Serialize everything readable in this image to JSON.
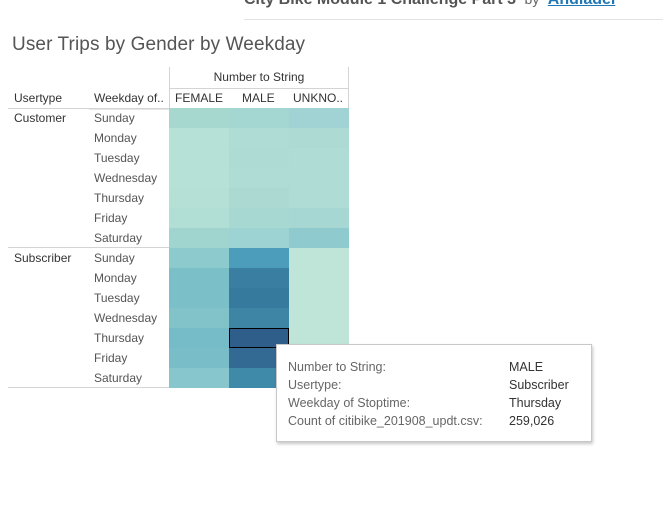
{
  "dashboard": {
    "title": "City Bike Module 1 Challenge Part 3",
    "by_label": "by",
    "author": "Ahdiadel"
  },
  "viz": {
    "title": "User Trips by Gender by Weekday",
    "column_group_header": "Number to String",
    "row_headers": [
      "Usertype",
      "Weekday of.."
    ],
    "columns": [
      "FEMALE",
      "MALE",
      "UNKNO.."
    ],
    "usertypes": [
      "Customer",
      "Subscriber"
    ],
    "weekdays": [
      "Sunday",
      "Monday",
      "Tuesday",
      "Wednesday",
      "Thursday",
      "Friday",
      "Saturday"
    ],
    "cell_colors": {
      "Customer": [
        [
          "#a6d8d0",
          "#a4d6d2",
          "#a1d3d4"
        ],
        [
          "#b6e1d6",
          "#afdcd4",
          "#addbd4"
        ],
        [
          "#b6e1d6",
          "#aedcd4",
          "#afdcd4"
        ],
        [
          "#b6e1d6",
          "#afdcd4",
          "#afdcd4"
        ],
        [
          "#b4e0d5",
          "#acdad3",
          "#afdcd4"
        ],
        [
          "#b1ded5",
          "#a8d8d2",
          "#a6d7d2"
        ],
        [
          "#a0d4cf",
          "#9dd3d2",
          "#8fcacf"
        ]
      ],
      "Subscriber": [
        [
          "#8dcace",
          "#4c9dbb",
          "#bfe5d8"
        ],
        [
          "#7bbfc8",
          "#3a7ea1",
          "#bfe5d8"
        ],
        [
          "#7bbfc8",
          "#367a9e",
          "#bfe5d8"
        ],
        [
          "#82c3ca",
          "#3d84a5",
          "#bfe5d8"
        ],
        [
          "#76bbc8",
          "#305e8b",
          "#bfe5d8"
        ],
        [
          "#79bdc8",
          "#336a94",
          "#bfe5d8"
        ],
        [
          "#86c6cc",
          "#3f8aa8",
          "#bfe5d8"
        ]
      ]
    }
  },
  "tooltip": {
    "rows": [
      {
        "key": "Number to String:",
        "value": "MALE"
      },
      {
        "key": "Usertype:",
        "value": "Subscriber"
      },
      {
        "key": "Weekday of Stoptime:",
        "value": "Thursday"
      },
      {
        "key": "Count of citibike_201908_updt.csv:",
        "value": "259,026"
      }
    ]
  }
}
